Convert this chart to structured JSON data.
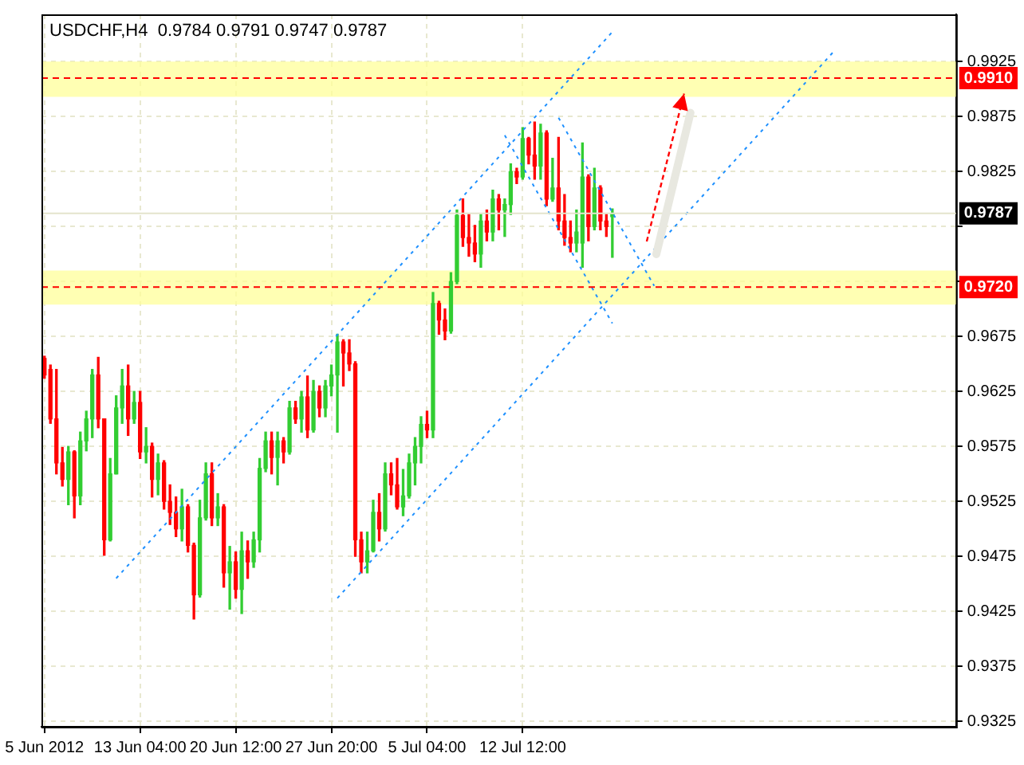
{
  "chart_data": {
    "type": "candlestick",
    "title": "USDCHF,H4  0.9784 0.9791 0.9747 0.9787",
    "categories": [
      "5 Jun 2012",
      null,
      null,
      null,
      null,
      null,
      null,
      null,
      null,
      null,
      null,
      null,
      null,
      null,
      null,
      null,
      "13 Jun 04:00",
      null,
      null,
      null,
      null,
      null,
      null,
      null,
      null,
      null,
      null,
      null,
      null,
      null,
      null,
      null,
      "20 Jun 12:00",
      null,
      null,
      null,
      null,
      null,
      null,
      null,
      null,
      null,
      null,
      null,
      null,
      null,
      null,
      null,
      "27 Jun 20:00",
      null,
      null,
      null,
      null,
      null,
      null,
      null,
      null,
      null,
      null,
      null,
      null,
      null,
      null,
      null,
      "5 Jul 04:00",
      null,
      null,
      null,
      null,
      null,
      null,
      null,
      null,
      null,
      null,
      null,
      null,
      null,
      null,
      null,
      "12 Jul 12:00",
      null,
      null,
      null,
      null,
      null,
      null,
      null,
      null,
      null,
      null,
      null,
      null,
      null,
      null,
      null,
      null,
      null,
      null,
      null,
      null,
      null,
      null,
      null,
      null,
      null,
      null,
      null,
      null,
      null,
      null,
      null,
      null,
      null,
      null,
      null,
      null,
      null,
      null,
      null,
      null,
      null,
      null,
      null,
      null,
      null,
      null,
      null,
      null,
      null,
      null,
      null,
      null,
      null,
      null,
      null,
      null,
      null,
      null,
      null,
      null,
      null,
      null,
      null,
      null,
      null,
      null,
      null,
      null,
      null,
      null,
      null,
      null
    ],
    "ohlc": [
      [
        0.9655,
        0.9657,
        0.9637,
        0.964
      ],
      [
        0.9645,
        0.9649,
        0.9596,
        0.96
      ],
      [
        0.96,
        0.9645,
        0.955,
        0.956
      ],
      [
        0.956,
        0.9574,
        0.9539,
        0.9545
      ],
      [
        0.9545,
        0.9575,
        0.9522,
        0.957
      ],
      [
        0.957,
        0.9571,
        0.951,
        0.953
      ],
      [
        0.953,
        0.9588,
        0.9522,
        0.958
      ],
      [
        0.958,
        0.9607,
        0.9571,
        0.96
      ],
      [
        0.96,
        0.9645,
        0.9583,
        0.964
      ],
      [
        0.964,
        0.9656,
        0.9592,
        0.96
      ],
      [
        0.96,
        0.96,
        0.9476,
        0.949
      ],
      [
        0.949,
        0.9564,
        0.9489,
        0.955
      ],
      [
        0.955,
        0.9621,
        0.955,
        0.961
      ],
      [
        0.961,
        0.9645,
        0.9596,
        0.963
      ],
      [
        0.963,
        0.9649,
        0.9585,
        0.96
      ],
      [
        0.96,
        0.9625,
        0.9596,
        0.9615
      ],
      [
        0.9615,
        0.9625,
        0.9564,
        0.957
      ],
      [
        0.957,
        0.9592,
        0.956,
        0.9575
      ],
      [
        0.9575,
        0.9578,
        0.9529,
        0.9545
      ],
      [
        0.9545,
        0.9568,
        0.9531,
        0.956
      ],
      [
        0.956,
        0.9562,
        0.9518,
        0.9525
      ],
      [
        0.9525,
        0.954,
        0.9504,
        0.9515
      ],
      [
        0.9515,
        0.9529,
        0.9493,
        0.95
      ],
      [
        0.95,
        0.9536,
        0.9489,
        0.952
      ],
      [
        0.952,
        0.9522,
        0.9479,
        0.9485
      ],
      [
        0.9485,
        0.9487,
        0.9418,
        0.944
      ],
      [
        0.944,
        0.9526,
        0.9438,
        0.951
      ],
      [
        0.951,
        0.956,
        0.9508,
        0.955
      ],
      [
        0.955,
        0.956,
        0.9503,
        0.951
      ],
      [
        0.951,
        0.9532,
        0.9503,
        0.952
      ],
      [
        0.952,
        0.9522,
        0.9447,
        0.946
      ],
      [
        0.946,
        0.9484,
        0.9427,
        0.947
      ],
      [
        0.947,
        0.9479,
        0.9437,
        0.9445
      ],
      [
        0.9445,
        0.9497,
        0.9423,
        0.948
      ],
      [
        0.948,
        0.9489,
        0.9455,
        0.947
      ],
      [
        0.947,
        0.9497,
        0.9465,
        0.949
      ],
      [
        0.949,
        0.9564,
        0.9479,
        0.9555
      ],
      [
        0.9555,
        0.9588,
        0.9552,
        0.958
      ],
      [
        0.958,
        0.9588,
        0.955,
        0.9565
      ],
      [
        0.9565,
        0.9588,
        0.954,
        0.958
      ],
      [
        0.958,
        0.9583,
        0.956,
        0.957
      ],
      [
        0.957,
        0.9616,
        0.9568,
        0.961
      ],
      [
        0.961,
        0.9616,
        0.9596,
        0.96
      ],
      [
        0.96,
        0.9625,
        0.9588,
        0.962
      ],
      [
        0.962,
        0.9639,
        0.9583,
        0.959
      ],
      [
        0.959,
        0.9635,
        0.9588,
        0.9625
      ],
      [
        0.9625,
        0.963,
        0.9602,
        0.961
      ],
      [
        0.961,
        0.9635,
        0.9602,
        0.963
      ],
      [
        0.963,
        0.9649,
        0.9621,
        0.964
      ],
      [
        0.964,
        0.9677,
        0.9588,
        0.967
      ],
      [
        0.967,
        0.9672,
        0.963,
        0.966
      ],
      [
        0.966,
        0.9672,
        0.9644,
        0.965
      ],
      [
        0.965,
        0.9652,
        0.9475,
        0.949
      ],
      [
        0.949,
        0.9497,
        0.946,
        0.947
      ],
      [
        0.947,
        0.9497,
        0.946,
        0.948
      ],
      [
        0.948,
        0.9526,
        0.9479,
        0.9515
      ],
      [
        0.9515,
        0.9532,
        0.9489,
        0.95
      ],
      [
        0.95,
        0.956,
        0.9498,
        0.955
      ],
      [
        0.955,
        0.956,
        0.9531,
        0.954
      ],
      [
        0.954,
        0.9564,
        0.9518,
        0.952
      ],
      [
        0.952,
        0.9554,
        0.9512,
        0.953
      ],
      [
        0.953,
        0.9568,
        0.9528,
        0.956
      ],
      [
        0.956,
        0.9583,
        0.954,
        0.9575
      ],
      [
        0.9575,
        0.9602,
        0.956,
        0.9595
      ],
      [
        0.9595,
        0.9607,
        0.9583,
        0.959
      ],
      [
        0.959,
        0.9715,
        0.9583,
        0.9705
      ],
      [
        0.9705,
        0.9707,
        0.9677,
        0.969
      ],
      [
        0.969,
        0.97,
        0.9672,
        0.968
      ],
      [
        0.968,
        0.9733,
        0.9678,
        0.9725
      ],
      [
        0.9725,
        0.979,
        0.9723,
        0.9785
      ],
      [
        0.9785,
        0.98,
        0.9757,
        0.9765
      ],
      [
        0.9765,
        0.9786,
        0.9748,
        0.976
      ],
      [
        0.976,
        0.9776,
        0.9743,
        0.975
      ],
      [
        0.975,
        0.9786,
        0.9738,
        0.978
      ],
      [
        0.978,
        0.979,
        0.9762,
        0.977
      ],
      [
        0.977,
        0.9808,
        0.9762,
        0.98
      ],
      [
        0.98,
        0.9804,
        0.9772,
        0.979
      ],
      [
        0.979,
        0.98,
        0.9766,
        0.9795
      ],
      [
        0.9795,
        0.9832,
        0.9786,
        0.9825
      ],
      [
        0.9825,
        0.9828,
        0.9814,
        0.982
      ],
      [
        0.982,
        0.9865,
        0.9818,
        0.9855
      ],
      [
        0.9855,
        0.9856,
        0.9832,
        0.984
      ],
      [
        0.984,
        0.987,
        0.9818,
        0.983
      ],
      [
        0.983,
        0.9868,
        0.9818,
        0.986
      ],
      [
        0.986,
        0.9862,
        0.9794,
        0.98
      ],
      [
        0.98,
        0.9837,
        0.9798,
        0.981
      ],
      [
        0.981,
        0.9856,
        0.9772,
        0.978
      ],
      [
        0.978,
        0.9804,
        0.9758,
        0.9765
      ],
      [
        0.9765,
        0.978,
        0.9752,
        0.976
      ],
      [
        0.976,
        0.979,
        0.9752,
        0.977
      ],
      [
        0.976,
        0.9851,
        0.9738,
        0.982
      ],
      [
        0.982,
        0.9822,
        0.9762,
        0.9775
      ],
      [
        0.9775,
        0.9828,
        0.9772,
        0.981
      ],
      [
        0.981,
        0.9812,
        0.9772,
        0.978
      ],
      [
        0.978,
        0.9786,
        0.9766,
        0.9775
      ],
      [
        0.9784,
        0.9791,
        0.9747,
        0.9787
      ],
      null,
      null,
      null,
      null,
      null,
      null,
      null,
      null,
      null,
      null,
      null,
      null,
      null,
      null,
      null,
      null,
      null,
      null,
      null,
      null,
      null,
      null,
      null,
      null,
      null,
      null,
      null,
      null,
      null,
      null,
      null,
      null,
      null,
      null,
      null,
      null,
      null,
      null,
      null,
      null,
      null,
      null,
      null,
      null,
      null,
      null,
      null,
      null,
      null,
      null,
      null,
      null,
      null,
      null,
      null,
      null,
      null
    ],
    "series": [
      {
        "type": "line",
        "color": "#1e90ff",
        "line_style": "dotted",
        "values": [
          null,
          null,
          null,
          null,
          null,
          null,
          null,
          null,
          null,
          null,
          null,
          null,
          0.9455,
          null,
          null,
          null,
          null,
          null,
          null,
          null,
          null,
          null,
          null,
          null,
          null,
          null,
          null,
          null,
          null,
          null,
          null,
          null,
          null,
          null,
          null,
          null,
          null,
          null,
          null,
          null,
          null,
          null,
          null,
          null,
          null,
          null,
          null,
          null,
          null,
          null,
          null,
          null,
          null,
          null,
          null,
          null,
          null,
          null,
          null,
          null,
          null,
          null,
          null,
          null,
          null,
          null,
          null,
          null,
          null,
          null,
          null,
          null,
          null,
          null,
          null,
          null,
          null,
          null,
          null,
          null,
          null,
          null,
          null,
          null,
          null,
          null,
          null,
          null,
          null,
          null,
          null,
          null,
          null,
          null,
          null,
          0.9952,
          null,
          null,
          null,
          null,
          null,
          null,
          null,
          null,
          null,
          null,
          null,
          null,
          null,
          null,
          null,
          null,
          null,
          null,
          null,
          null,
          null,
          null,
          null,
          null,
          null,
          null,
          null,
          null,
          null,
          null,
          null,
          null,
          null,
          null,
          null,
          null,
          null,
          null,
          null,
          null,
          null,
          null,
          null,
          null,
          null,
          null,
          null,
          null,
          null,
          null,
          null,
          null,
          null,
          null,
          null,
          null,
          null
        ]
      },
      {
        "type": "line",
        "color": "#1e90ff",
        "line_style": "dotted",
        "values": [
          null,
          null,
          null,
          null,
          null,
          null,
          null,
          null,
          null,
          null,
          null,
          null,
          null,
          null,
          null,
          null,
          null,
          null,
          null,
          null,
          null,
          null,
          null,
          null,
          null,
          null,
          null,
          null,
          null,
          null,
          null,
          null,
          null,
          null,
          null,
          null,
          null,
          null,
          null,
          null,
          null,
          null,
          null,
          null,
          null,
          null,
          null,
          null,
          null,
          0.9437,
          null,
          null,
          null,
          null,
          null,
          null,
          null,
          null,
          null,
          null,
          null,
          null,
          null,
          null,
          null,
          null,
          null,
          null,
          null,
          null,
          null,
          null,
          null,
          null,
          null,
          null,
          null,
          null,
          null,
          null,
          null,
          null,
          null,
          null,
          null,
          null,
          null,
          null,
          null,
          null,
          null,
          null,
          null,
          null,
          null,
          null,
          null,
          null,
          null,
          null,
          null,
          null,
          null,
          null,
          null,
          null,
          null,
          null,
          null,
          null,
          null,
          null,
          null,
          null,
          null,
          null,
          null,
          null,
          null,
          null,
          null,
          null,
          null,
          null,
          null,
          null,
          null,
          null,
          null,
          null,
          null,
          null,
          0.9934,
          null,
          null,
          null,
          null,
          null,
          null,
          null,
          null,
          null,
          null,
          null,
          null,
          null,
          null,
          null,
          null,
          null,
          null,
          null,
          null
        ]
      },
      {
        "type": "line",
        "color": "#1e90ff",
        "line_style": "dotted",
        "values": [
          null,
          null,
          null,
          null,
          null,
          null,
          null,
          null,
          null,
          null,
          null,
          null,
          null,
          null,
          null,
          null,
          null,
          null,
          null,
          null,
          null,
          null,
          null,
          null,
          null,
          null,
          null,
          null,
          null,
          null,
          null,
          null,
          null,
          null,
          null,
          null,
          null,
          null,
          null,
          null,
          null,
          null,
          null,
          null,
          null,
          null,
          null,
          null,
          null,
          null,
          null,
          null,
          null,
          null,
          null,
          null,
          null,
          null,
          null,
          null,
          null,
          null,
          null,
          null,
          null,
          null,
          null,
          null,
          null,
          null,
          null,
          null,
          null,
          null,
          null,
          null,
          null,
          0.9858,
          null,
          null,
          null,
          null,
          null,
          null,
          null,
          null,
          null,
          null,
          null,
          null,
          null,
          null,
          null,
          null,
          null,
          0.9687,
          null,
          null,
          null,
          null,
          null,
          null,
          null,
          null,
          null,
          null,
          null,
          null,
          null,
          null,
          null,
          null,
          null,
          null,
          null,
          null,
          null,
          null,
          null,
          null,
          null,
          null,
          null,
          null,
          null,
          null,
          null,
          null,
          null,
          null,
          null,
          null,
          null,
          null,
          null,
          null,
          null,
          null,
          null,
          null,
          null,
          null,
          null,
          null,
          null,
          null,
          null,
          null,
          null,
          null,
          null,
          null,
          null
        ]
      },
      {
        "type": "line",
        "color": "#1e90ff",
        "line_style": "dotted",
        "values": [
          null,
          null,
          null,
          null,
          null,
          null,
          null,
          null,
          null,
          null,
          null,
          null,
          null,
          null,
          null,
          null,
          null,
          null,
          null,
          null,
          null,
          null,
          null,
          null,
          null,
          null,
          null,
          null,
          null,
          null,
          null,
          null,
          null,
          null,
          null,
          null,
          null,
          null,
          null,
          null,
          null,
          null,
          null,
          null,
          null,
          null,
          null,
          null,
          null,
          null,
          null,
          null,
          null,
          null,
          null,
          null,
          null,
          null,
          null,
          null,
          null,
          null,
          null,
          null,
          null,
          null,
          null,
          null,
          null,
          null,
          null,
          null,
          null,
          null,
          null,
          null,
          null,
          null,
          null,
          null,
          null,
          null,
          null,
          null,
          null,
          null,
          0.9874,
          null,
          null,
          null,
          null,
          null,
          null,
          null,
          null,
          null,
          null,
          null,
          null,
          null,
          null,
          null,
          0.9721,
          null,
          null,
          null,
          null,
          null,
          null,
          null,
          null,
          null,
          null,
          null,
          null,
          null,
          null,
          null,
          null,
          null,
          null,
          null,
          null,
          null,
          null,
          null,
          null,
          null,
          null,
          null,
          null,
          null,
          null,
          null,
          null,
          null,
          null,
          null,
          null,
          null,
          null,
          null,
          null,
          null,
          null,
          null,
          null,
          null,
          null,
          null,
          null,
          null,
          null
        ]
      }
    ],
    "ylim": [
      0.932,
      0.9968
    ],
    "yticks": [
      0.9325,
      0.9375,
      0.9425,
      0.9475,
      0.9525,
      0.9575,
      0.9625,
      0.9675,
      {
        "value": 0.9725,
        "label": null
      },
      {
        "value": 0.9775,
        "label": null
      },
      0.9825,
      0.9875,
      0.9925
    ],
    "ref_lines": [
      {
        "axis": "y",
        "value": 0.991,
        "label": "0.9910",
        "color": "#ff0000",
        "line_style": "dashed"
      },
      {
        "axis": "y",
        "value": 0.972,
        "label": "0.9720",
        "color": "#ff0000",
        "line_style": "dashed"
      },
      {
        "axis": "y",
        "value": 0.9787,
        "label": "0.9787",
        "color": "#e4e4cc",
        "line_style": "solid"
      }
    ],
    "bands": [
      {
        "axis": "y",
        "from": 0.9893,
        "to": 0.9925,
        "color": "#ffff99"
      },
      {
        "axis": "y",
        "from": 0.9704,
        "to": 0.9735,
        "color": "#ffff99"
      }
    ],
    "grid": true
  }
}
